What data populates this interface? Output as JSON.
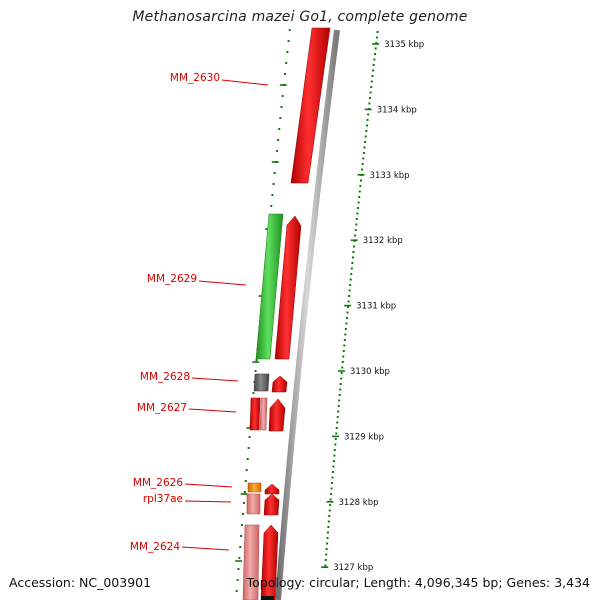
{
  "title": "Methanosarcina mazei Go1, complete genome",
  "footer": {
    "accession": "Accession: NC_003901",
    "summary": "Topology: circular; Length: 4,096,345 bp; Genes: 3,434"
  },
  "colors": {
    "label_red": "#d40000",
    "tick_green": "#117711",
    "cds_red": "#ee0000",
    "rna_green": "#33bb33",
    "pseudo_gray": "#666666",
    "orange": "#ee8800",
    "pink": "#e88888",
    "backbone": "#999999"
  },
  "scale_ticks": [
    {
      "label": "3135 kbp",
      "value": 3135
    },
    {
      "label": "3134 kbp",
      "value": 3134
    },
    {
      "label": "3133 kbp",
      "value": 3133
    },
    {
      "label": "3132 kbp",
      "value": 3132
    },
    {
      "label": "3131 kbp",
      "value": 3131
    },
    {
      "label": "3130 kbp",
      "value": 3130
    },
    {
      "label": "3129 kbp",
      "value": 3129
    },
    {
      "label": "3128 kbp",
      "value": 3128
    },
    {
      "label": "3127 kbp",
      "value": 3127
    }
  ],
  "gene_labels": [
    {
      "label": "MM_2630"
    },
    {
      "label": "MM_2629"
    },
    {
      "label": "MM_2628"
    },
    {
      "label": "MM_2627"
    },
    {
      "label": "MM_2626"
    },
    {
      "label": "rpl37ae"
    },
    {
      "label": "MM_2624"
    }
  ]
}
